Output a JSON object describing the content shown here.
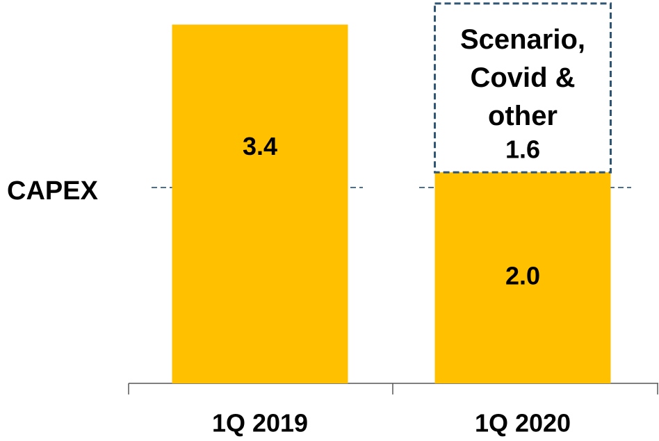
{
  "chart_data": {
    "type": "bar",
    "stacked": true,
    "categories": [
      "1Q 2019",
      "1Q 2020"
    ],
    "series": [
      {
        "name": "CAPEX",
        "color": "#ffc000",
        "values": [
          3.4,
          2.0
        ],
        "value_labels": [
          "3.4",
          "2.0"
        ]
      },
      {
        "name": "Scenario, Covid & other",
        "color": "#2f5575",
        "dashed": true,
        "values": [
          null,
          1.6
        ],
        "value_labels": [
          null,
          "1.6"
        ]
      }
    ],
    "ylim": [
      0,
      3.6
    ]
  }
}
